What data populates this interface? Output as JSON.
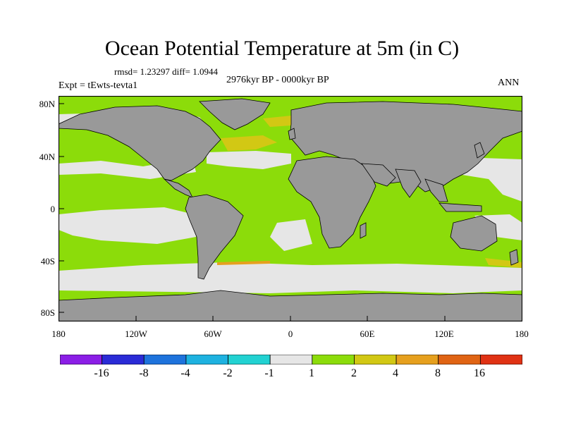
{
  "title": "Ocean Potential Temperature at 5m (in C)",
  "stats": "rmsd= 1.23297 diff= 1.0944",
  "period": "2976kyr BP - 0000kyr BP",
  "experiment": "Expt = tEwts-tevta1",
  "season": "ANN",
  "lat_labels": [
    "80N",
    "40N",
    "0",
    "40S",
    "80S"
  ],
  "lon_labels": [
    "180",
    "120W",
    "60W",
    "0",
    "60E",
    "120E",
    "180"
  ],
  "colorbar": {
    "colors": [
      "#8b1ee6",
      "#2a2bd6",
      "#1e73dc",
      "#1eb2e0",
      "#22d2d2",
      "#e6e6e6",
      "#8cdc0a",
      "#d2c814",
      "#e6a01e",
      "#e06414",
      "#e03214"
    ],
    "labels": [
      "-16",
      "-8",
      "-4",
      "-2",
      "-1",
      "1",
      "2",
      "4",
      "8",
      "16"
    ]
  },
  "map_colors": {
    "land": "#999999",
    "neutral": "#e6e6e6",
    "warm_small": "#8cdc0a",
    "warm_mid": "#d2c814",
    "warm_high": "#e6a01e",
    "cool": "#22d2d2"
  }
}
